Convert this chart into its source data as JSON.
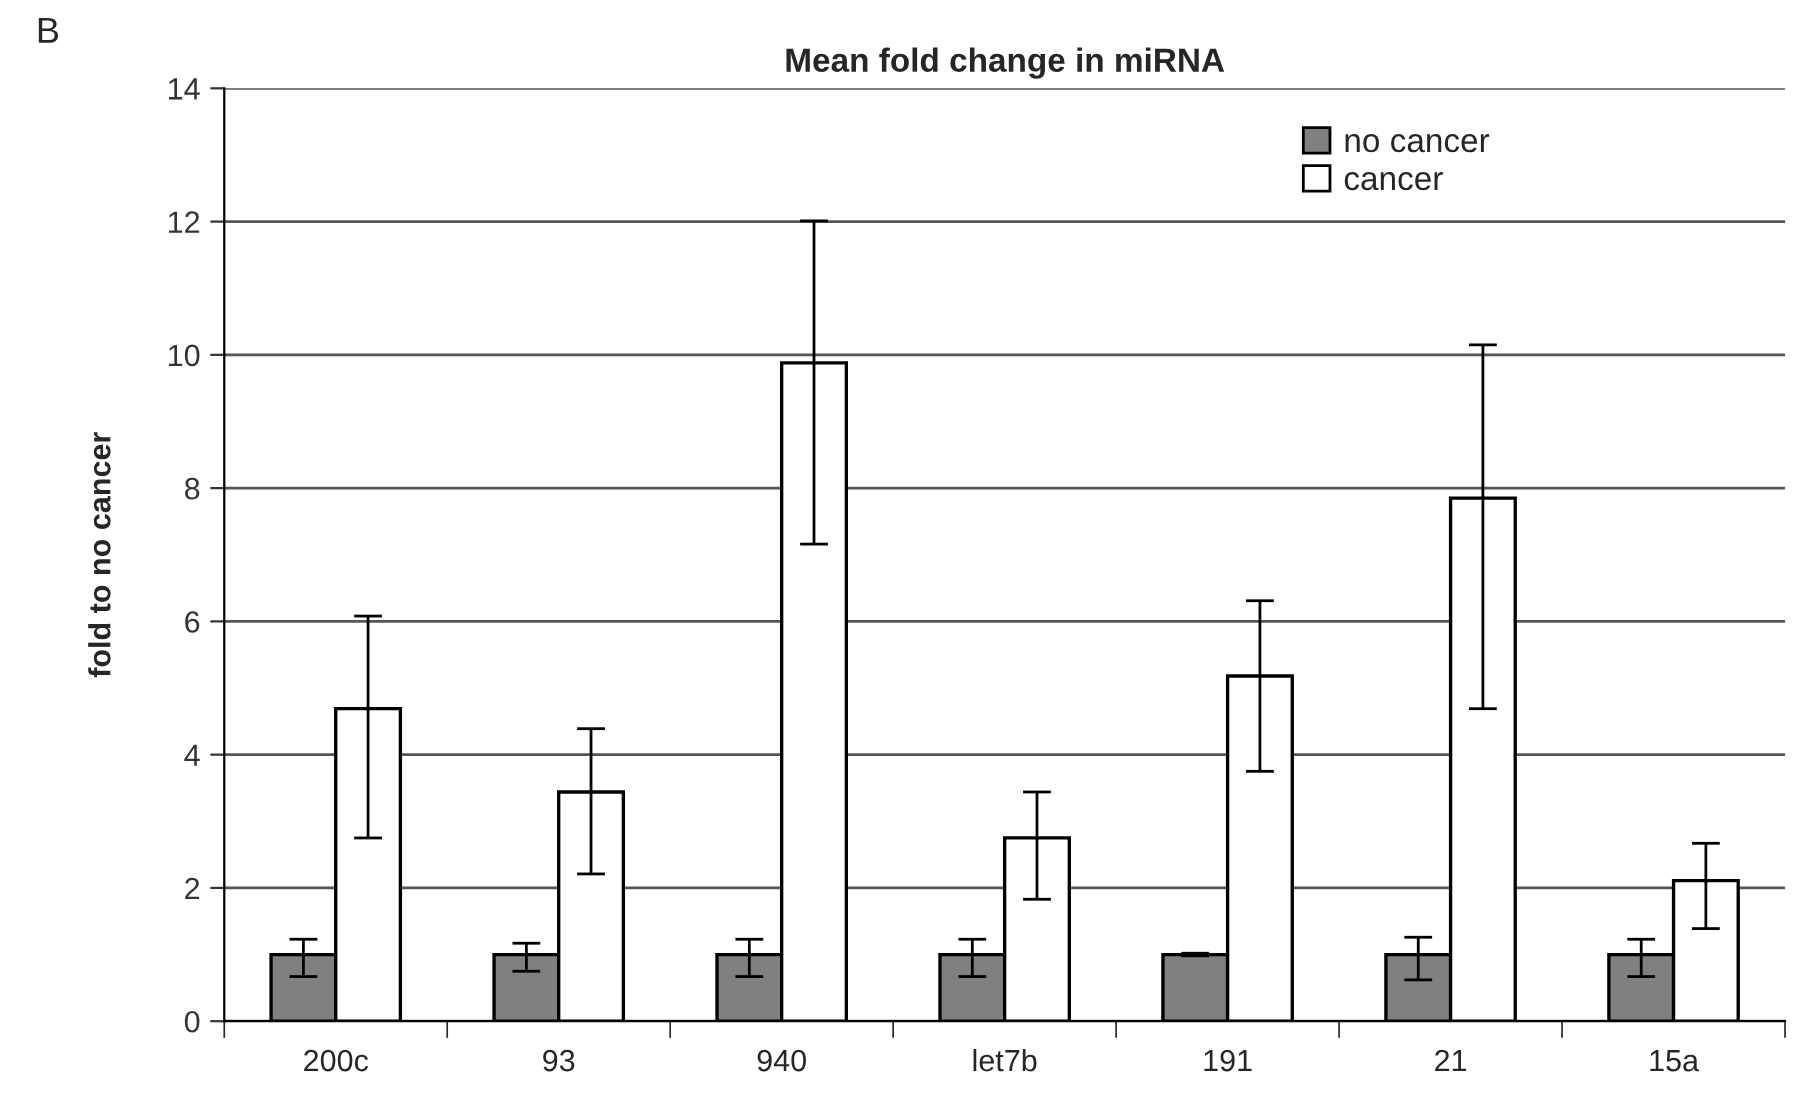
{
  "chart_data": {
    "type": "bar",
    "title": "Mean fold change in miRNA",
    "ylabel": "fold to no cancer",
    "annotations": [
      "B"
    ],
    "categories": [
      "200c",
      "93",
      "940",
      "let7b",
      "191",
      "21",
      "15a"
    ],
    "series": [
      {
        "name": "no cancer",
        "color": "#808080",
        "values": [
          1,
          1,
          1,
          1,
          1,
          1,
          1
        ],
        "errors": [
          [
            0.67,
            1.23
          ],
          [
            0.75,
            1.17
          ],
          [
            0.67,
            1.23
          ],
          [
            0.67,
            1.23
          ],
          [
            0.98,
            1.02
          ],
          [
            0.62,
            1.26
          ],
          [
            0.67,
            1.23
          ]
        ]
      },
      {
        "name": "cancer",
        "color": "#ffffff",
        "values": [
          4.69,
          3.44,
          9.88,
          2.75,
          5.18,
          7.85,
          2.11
        ],
        "errors": [
          [
            2.75,
            6.08
          ],
          [
            2.21,
            4.39
          ],
          [
            7.16,
            12.01
          ],
          [
            1.83,
            3.44
          ],
          [
            3.75,
            6.31
          ],
          [
            4.69,
            10.15
          ],
          [
            1.39,
            2.67
          ]
        ]
      }
    ],
    "ylim": [
      0,
      14
    ],
    "yticks": [
      0,
      2,
      4,
      6,
      8,
      10,
      12,
      14
    ],
    "grid": "y",
    "legend": "top right"
  }
}
